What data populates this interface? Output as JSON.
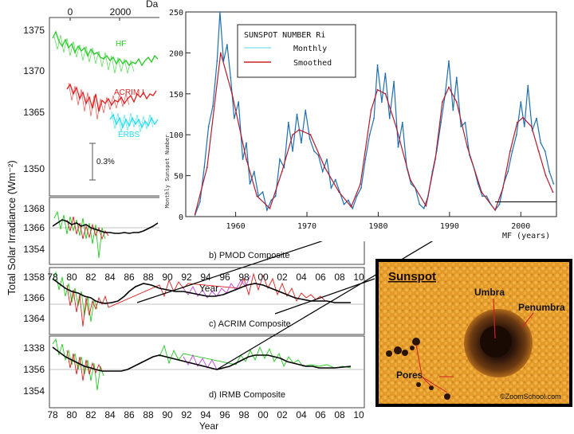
{
  "tsi_figure": {
    "top_axis_ticks": [
      "0",
      "2000"
    ],
    "top_axis_label_partial": "Da",
    "y_axis_label": "Total Solar Irradiance (Wm⁻²)",
    "scale_bar_label": "0.3%",
    "instrument_labels": {
      "hf": "HF",
      "acrim": "ACRIM I",
      "erbs": "ERBS"
    },
    "upper_ticks": [
      "1375",
      "1370",
      "1365",
      "1350"
    ],
    "panel_b_ticks": [
      "1368",
      "1366",
      "1354"
    ],
    "panel_c_ticks": [
      "1358",
      "1366",
      "1364"
    ],
    "panel_d_ticks": [
      "1338",
      "1356",
      "1354"
    ],
    "x_ticks": [
      "78",
      "80",
      "82",
      "84",
      "86",
      "88",
      "90",
      "92",
      "94",
      "96",
      "98",
      "00",
      "02",
      "04",
      "06",
      "08",
      "10"
    ],
    "x_label": "Year",
    "panel_b_title": "b) PMOD Composite",
    "panel_c_title": "c) ACRIM Composite",
    "panel_d_title": "d) IRMB Composite",
    "colors": {
      "hf": "#22cc22",
      "acrim": "#e02020",
      "erbs": "#22ddee",
      "virgo": "#c040e0",
      "mean": "#000000"
    }
  },
  "chart_data": [
    {
      "type": "line",
      "title": "SUNSPOT NUMBER Ri",
      "xlabel": "MF (years)",
      "ylabel": "Monthly Sunspot Number",
      "xlim": [
        1953,
        2005
      ],
      "ylim": [
        0,
        250
      ],
      "x_tick_labels": [
        "1960",
        "1970",
        "1980",
        "1990",
        "2000"
      ],
      "y_tick_labels": [
        "0",
        "50",
        "100",
        "150",
        "200",
        "250"
      ],
      "legend": [
        "Monthly",
        "Smoothed"
      ],
      "legend_position": "top-left",
      "series": [
        {
          "name": "Smoothed",
          "x": [
            1954.3,
            1956.0,
            1957.9,
            1959.5,
            1961.5,
            1963.0,
            1964.8,
            1966.5,
            1968.0,
            1968.9,
            1970.5,
            1972.5,
            1974.5,
            1976.2,
            1977.5,
            1979.0,
            1979.9,
            1981.0,
            1982.5,
            1984.5,
            1986.7,
            1988.0,
            1989.0,
            1989.9,
            1991.0,
            1992.5,
            1994.5,
            1996.4,
            1997.5,
            1998.5,
            1999.5,
            2000.3,
            2001.5,
            2002.5,
            2003.5,
            2004.5
          ],
          "values": [
            3,
            60,
            200,
            150,
            70,
            25,
            10,
            55,
            100,
            106,
            100,
            60,
            30,
            12,
            40,
            130,
            155,
            150,
            110,
            45,
            13,
            70,
            140,
            158,
            140,
            85,
            30,
            8,
            35,
            80,
            115,
            121,
            110,
            80,
            50,
            30
          ]
        },
        {
          "name": "Monthly",
          "x": [
            1954.3,
            1955.0,
            1955.6,
            1956.2,
            1956.8,
            1957.4,
            1957.8,
            1958.3,
            1958.8,
            1959.3,
            1959.8,
            1960.4,
            1961.0,
            1961.5,
            1962.0,
            1962.6,
            1963.2,
            1963.8,
            1964.4,
            1965.0,
            1965.6,
            1966.2,
            1966.8,
            1967.4,
            1968.0,
            1968.6,
            1969.2,
            1969.8,
            1970.4,
            1971.0,
            1971.6,
            1972.2,
            1972.8,
            1973.4,
            1974.0,
            1974.6,
            1975.2,
            1975.8,
            1976.4,
            1977.0,
            1977.6,
            1978.2,
            1978.8,
            1979.4,
            1979.9,
            1980.5,
            1981.0,
            1981.6,
            1982.2,
            1982.8,
            1983.4,
            1984.0,
            1984.6,
            1985.2,
            1985.8,
            1986.4,
            1987.0,
            1987.6,
            1988.2,
            1988.8,
            1989.4,
            1989.9,
            1990.5,
            1991.0,
            1991.6,
            1992.2,
            1992.8,
            1993.4,
            1994.0,
            1994.6,
            1995.2,
            1995.8,
            1996.4,
            1997.0,
            1997.6,
            1998.2,
            1998.8,
            1999.4,
            2000.0,
            2000.5,
            2001.0,
            2001.6,
            2002.2,
            2002.8,
            2003.4,
            2004.0,
            2004.6
          ],
          "values": [
            2,
            18,
            60,
            110,
            135,
            190,
            250,
            190,
            210,
            170,
            120,
            140,
            70,
            90,
            40,
            55,
            25,
            30,
            8,
            20,
            25,
            70,
            60,
            115,
            80,
            125,
            90,
            130,
            95,
            80,
            75,
            55,
            70,
            35,
            45,
            30,
            15,
            20,
            10,
            25,
            35,
            70,
            100,
            120,
            185,
            140,
            175,
            120,
            165,
            85,
            115,
            60,
            40,
            35,
            15,
            10,
            25,
            55,
            80,
            115,
            150,
            190,
            130,
            170,
            110,
            115,
            75,
            60,
            40,
            25,
            25,
            15,
            8,
            15,
            40,
            55,
            80,
            100,
            140,
            110,
            160,
            105,
            120,
            90,
            80,
            55,
            40
          ]
        }
      ]
    }
  ],
  "sunspot_image": {
    "title": "Sunspot",
    "labels": {
      "umbra": "Umbra",
      "penumbra": "Penumbra",
      "pores": "Pores"
    },
    "credit": "©ZoomSchool.com"
  }
}
